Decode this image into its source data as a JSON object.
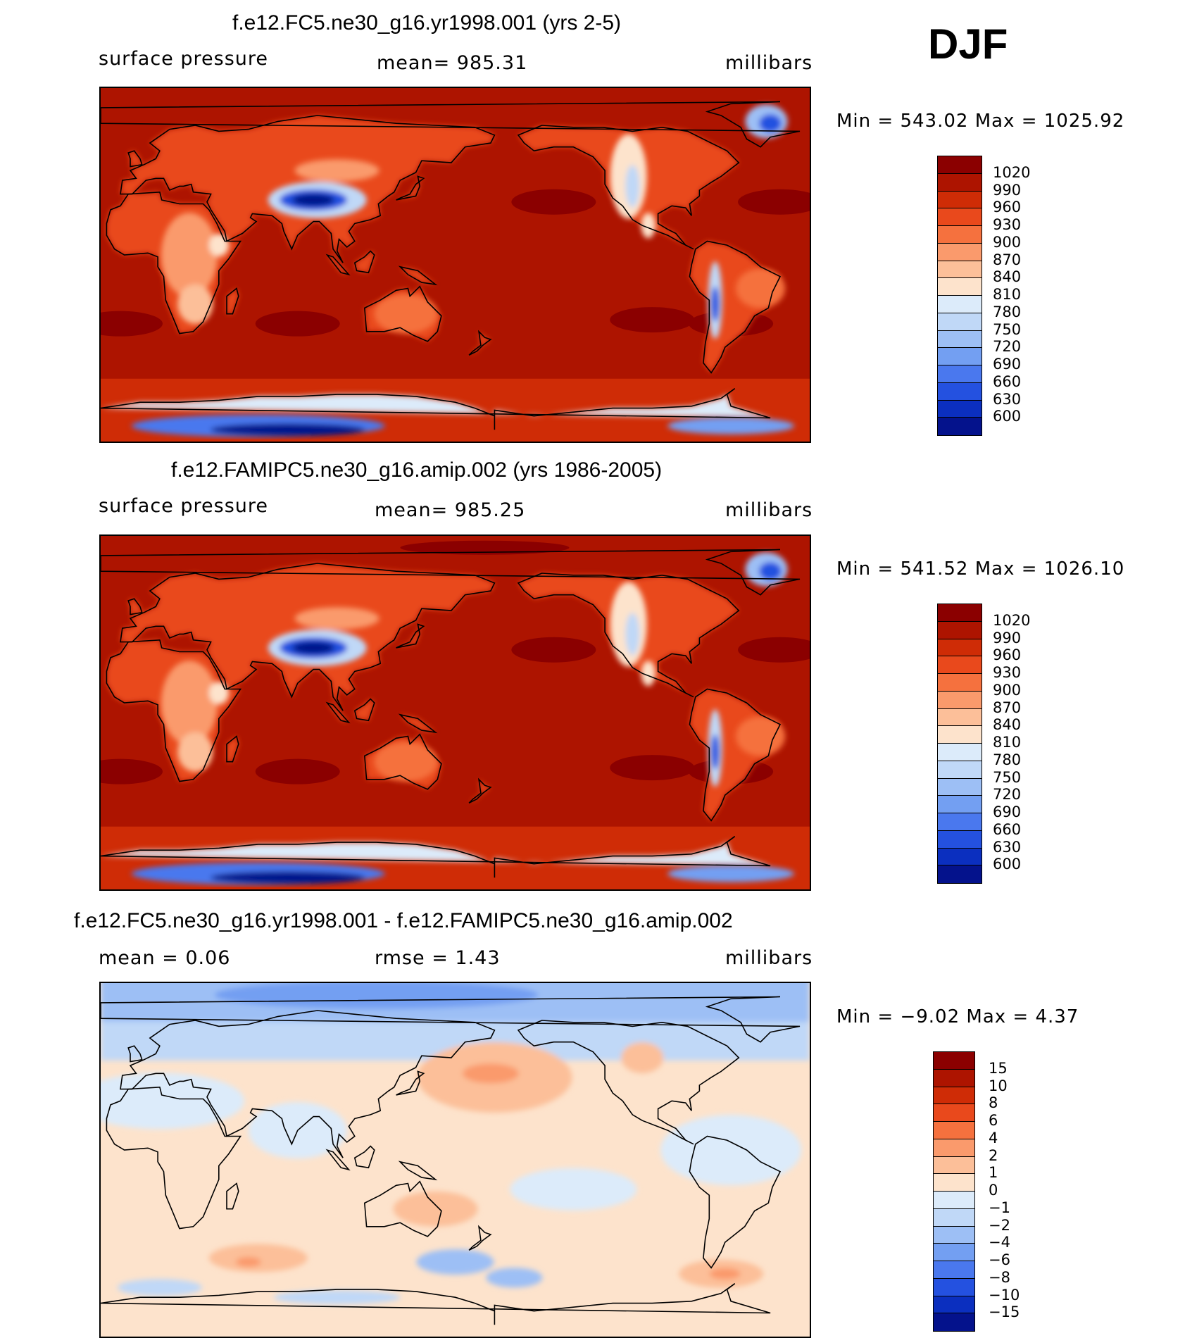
{
  "season": "DJF",
  "panels": [
    {
      "title": "f.e12.FC5.ne30_g16.yr1998.001 (yrs 2-5)",
      "left_label": "surface pressure",
      "center_label": "mean= 985.31",
      "right_label": "millibars",
      "minmax": "Min = 543.02 Max = 1025.92",
      "kind": "abs"
    },
    {
      "title": "f.e12.FAMIPC5.ne30_g16.amip.002 (yrs 1986-2005)",
      "left_label": "surface pressure",
      "center_label": "mean= 985.25",
      "right_label": "millibars",
      "minmax": "Min = 541.52 Max = 1026.10",
      "kind": "abs"
    },
    {
      "title": "f.e12.FC5.ne30_g16.yr1998.001 - f.e12.FAMIPC5.ne30_g16.amip.002",
      "left_label": "mean = 0.06",
      "center_label": "rmse = 1.43",
      "right_label": "millibars",
      "minmax": "Min = −9.02 Max = 4.37",
      "kind": "diff"
    }
  ],
  "colorbar_abs": {
    "labels": [
      "1020",
      "990",
      "960",
      "930",
      "900",
      "870",
      "840",
      "810",
      "780",
      "750",
      "720",
      "690",
      "660",
      "630",
      "600"
    ],
    "colors": [
      "#8b0000",
      "#ad1400",
      "#cf2c06",
      "#e9491c",
      "#f5713e",
      "#fa9a6c",
      "#fcbf99",
      "#fde3cc",
      "#dcebfa",
      "#c0d8f7",
      "#9dbff5",
      "#739ff2",
      "#4a78ee",
      "#2451e0",
      "#0b2fbf",
      "#04128c"
    ]
  },
  "colorbar_diff": {
    "labels": [
      "15",
      "10",
      "8",
      "6",
      "4",
      "2",
      "1",
      "0",
      "−1",
      "−2",
      "−4",
      "−6",
      "−8",
      "−10",
      "−15"
    ],
    "colors": [
      "#8b0000",
      "#ad1400",
      "#cf2c06",
      "#e9491c",
      "#f5713e",
      "#fa9a6c",
      "#fcbf99",
      "#fde3cc",
      "#dcebfa",
      "#c0d8f7",
      "#9dbff5",
      "#739ff2",
      "#4a78ee",
      "#2451e0",
      "#0b2fbf",
      "#04128c"
    ]
  },
  "chart_data": [
    {
      "type": "heatmap",
      "title": "f.e12.FC5.ne30_g16.yr1998.001 (yrs 2-5)",
      "variable": "surface pressure",
      "units": "millibars",
      "mean": 985.31,
      "min": 543.02,
      "max": 1025.92,
      "contour_levels": [
        600,
        630,
        660,
        690,
        720,
        750,
        780,
        810,
        840,
        870,
        900,
        930,
        960,
        990,
        1020
      ]
    },
    {
      "type": "heatmap",
      "title": "f.e12.FAMIPC5.ne30_g16.amip.002 (yrs 1986-2005)",
      "variable": "surface pressure",
      "units": "millibars",
      "mean": 985.25,
      "min": 541.52,
      "max": 1026.1,
      "contour_levels": [
        600,
        630,
        660,
        690,
        720,
        750,
        780,
        810,
        840,
        870,
        900,
        930,
        960,
        990,
        1020
      ]
    },
    {
      "type": "heatmap",
      "title": "f.e12.FC5.ne30_g16.yr1998.001 - f.e12.FAMIPC5.ne30_g16.amip.002",
      "units": "millibars",
      "mean": 0.06,
      "rmse": 1.43,
      "min": -9.02,
      "max": 4.37,
      "contour_levels": [
        -15,
        -10,
        -8,
        -6,
        -4,
        -2,
        -1,
        0,
        1,
        2,
        4,
        6,
        8,
        10,
        15
      ]
    }
  ]
}
